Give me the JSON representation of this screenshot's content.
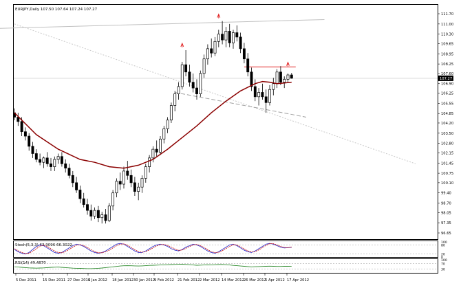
{
  "header": {
    "symbol_line": "EURJPY,Daily  107.50 107.64 107.24 107.27",
    "stoch_label": "Stoch(5,3,3) 63.9096 66.3022",
    "rsi_label": "RSI(14) 49.4870"
  },
  "colors": {
    "background": "#ffffff",
    "candle": "#000000",
    "moving_average": "#8b0000",
    "trendline_gray": "#b0b0b0",
    "resistance_red": "#e02020",
    "fractal_red": "#e02020",
    "stoch_main": "#3333cc",
    "stoch_signal": "#cc2222",
    "rsi_line": "#2e8b2e",
    "price_tag_bg": "#000000",
    "price_tag_text": "#ffffff"
  },
  "price_axis": {
    "ticks": [
      "111.70",
      "111.00",
      "110.30",
      "109.65",
      "108.95",
      "108.25",
      "107.60",
      "106.90",
      "106.25",
      "105.55",
      "104.85",
      "104.20",
      "103.50",
      "102.80",
      "102.15",
      "101.45",
      "100.75",
      "100.10",
      "99.40",
      "98.70",
      "98.05",
      "97.35",
      "96.65"
    ],
    "current_price": "107.27"
  },
  "stoch_axis": {
    "ticks": [
      "100",
      "80",
      "20",
      "0"
    ]
  },
  "rsi_axis": {
    "ticks": [
      "100",
      "70",
      "30"
    ]
  },
  "time_axis": {
    "ticks": [
      "5 Dec 2011",
      "15 Dec 2011",
      "27 Dec 2011",
      "6 Jan 2012",
      "18 Jan 2012",
      "30 Jan 2012",
      "9 Feb 2012",
      "21 Feb 2012",
      "2 Mar 2012",
      "14 Mar 2012",
      "26 Mar 2012",
      "5 Apr 2012",
      "17 Apr 2012"
    ]
  },
  "chart_data": {
    "type": "candlestick",
    "symbol": "EURJPY",
    "timeframe": "Daily",
    "ylim": [
      96.65,
      111.7
    ],
    "last_bar": {
      "open": 107.5,
      "high": 107.64,
      "low": 107.24,
      "close": 107.27
    },
    "ohlc": [
      [
        104.9,
        105.2,
        104.4,
        104.6
      ],
      [
        104.6,
        104.9,
        104.0,
        104.3
      ],
      [
        104.3,
        104.6,
        103.3,
        103.6
      ],
      [
        103.6,
        103.9,
        103.0,
        103.3
      ],
      [
        103.3,
        103.5,
        102.3,
        102.6
      ],
      [
        102.6,
        102.9,
        101.8,
        102.1
      ],
      [
        102.1,
        102.4,
        101.5,
        101.7
      ],
      [
        101.7,
        102.1,
        101.3,
        101.5
      ],
      [
        101.5,
        101.9,
        101.1,
        101.8
      ],
      [
        101.8,
        102.2,
        101.2,
        101.4
      ],
      [
        101.4,
        101.8,
        100.9,
        101.2
      ],
      [
        101.2,
        101.9,
        100.9,
        101.7
      ],
      [
        101.7,
        102.1,
        101.4,
        101.9
      ],
      [
        101.9,
        102.2,
        101.2,
        101.4
      ],
      [
        101.4,
        101.7,
        100.8,
        101.1
      ],
      [
        101.1,
        101.4,
        100.4,
        100.6
      ],
      [
        100.6,
        100.9,
        99.8,
        100.1
      ],
      [
        100.1,
        100.5,
        99.4,
        99.6
      ],
      [
        99.6,
        99.9,
        98.7,
        99.0
      ],
      [
        99.0,
        99.4,
        98.4,
        98.6
      ],
      [
        98.6,
        99.0,
        97.9,
        98.2
      ],
      [
        98.2,
        98.6,
        97.5,
        97.8
      ],
      [
        97.8,
        98.4,
        97.6,
        98.2
      ],
      [
        98.2,
        98.5,
        97.4,
        97.7
      ],
      [
        97.7,
        98.1,
        97.3,
        97.9
      ],
      [
        97.9,
        98.3,
        97.3,
        97.5
      ],
      [
        97.5,
        98.7,
        97.4,
        98.5
      ],
      [
        98.5,
        99.6,
        98.2,
        99.4
      ],
      [
        99.4,
        100.4,
        99.1,
        100.2
      ],
      [
        100.2,
        100.8,
        99.6,
        100.0
      ],
      [
        100.0,
        101.2,
        99.7,
        100.9
      ],
      [
        100.9,
        101.6,
        100.3,
        100.6
      ],
      [
        100.6,
        101.0,
        99.8,
        100.1
      ],
      [
        100.1,
        100.5,
        99.2,
        99.5
      ],
      [
        99.5,
        100.1,
        98.9,
        99.8
      ],
      [
        99.8,
        100.6,
        99.4,
        100.4
      ],
      [
        100.4,
        101.4,
        100.1,
        101.2
      ],
      [
        101.2,
        102.0,
        100.8,
        101.8
      ],
      [
        101.8,
        102.6,
        101.5,
        102.4
      ],
      [
        102.4,
        103.0,
        101.9,
        102.2
      ],
      [
        102.2,
        103.3,
        102.0,
        103.1
      ],
      [
        103.1,
        104.0,
        102.8,
        103.8
      ],
      [
        103.8,
        104.6,
        103.5,
        104.4
      ],
      [
        104.4,
        105.6,
        104.2,
        105.4
      ],
      [
        105.4,
        106.4,
        105.0,
        106.2
      ],
      [
        106.2,
        107.0,
        105.8,
        106.7
      ],
      [
        106.7,
        108.4,
        106.5,
        108.2
      ],
      [
        108.2,
        109.2,
        107.4,
        107.7
      ],
      [
        107.7,
        108.2,
        106.7,
        107.0
      ],
      [
        107.0,
        107.6,
        106.3,
        106.6
      ],
      [
        106.6,
        107.2,
        105.8,
        106.2
      ],
      [
        106.2,
        107.8,
        106.0,
        107.6
      ],
      [
        107.6,
        108.9,
        107.3,
        108.6
      ],
      [
        108.6,
        109.6,
        108.2,
        109.3
      ],
      [
        109.3,
        110.0,
        108.7,
        109.0
      ],
      [
        109.0,
        110.1,
        108.8,
        109.8
      ],
      [
        109.8,
        110.6,
        109.4,
        110.3
      ],
      [
        110.3,
        111.2,
        109.6,
        109.9
      ],
      [
        109.9,
        110.8,
        109.4,
        110.5
      ],
      [
        110.5,
        111.0,
        109.4,
        109.7
      ],
      [
        109.7,
        110.6,
        109.3,
        110.4
      ],
      [
        110.4,
        110.9,
        109.8,
        110.1
      ],
      [
        110.1,
        110.4,
        109.0,
        109.3
      ],
      [
        109.3,
        109.7,
        108.3,
        108.6
      ],
      [
        108.6,
        109.0,
        107.4,
        107.7
      ],
      [
        107.7,
        108.0,
        106.4,
        106.7
      ],
      [
        106.7,
        107.2,
        105.7,
        106.0
      ],
      [
        106.0,
        106.6,
        105.4,
        106.3
      ],
      [
        106.3,
        106.9,
        105.8,
        106.0
      ],
      [
        106.0,
        106.5,
        104.9,
        105.6
      ],
      [
        105.6,
        106.8,
        105.4,
        106.5
      ],
      [
        106.5,
        107.3,
        106.1,
        106.9
      ],
      [
        106.9,
        107.9,
        106.6,
        107.7
      ],
      [
        107.7,
        108.1,
        106.8,
        107.0
      ],
      [
        107.0,
        107.4,
        106.6,
        107.2
      ],
      [
        107.2,
        107.6,
        107.0,
        107.5
      ],
      [
        107.5,
        107.64,
        107.24,
        107.27
      ]
    ],
    "moving_average": [
      [
        0,
        104.9
      ],
      [
        6,
        103.4
      ],
      [
        12,
        102.4
      ],
      [
        18,
        101.7
      ],
      [
        22,
        101.5
      ],
      [
        26,
        101.2
      ],
      [
        30,
        101.1
      ],
      [
        34,
        101.3
      ],
      [
        38,
        101.7
      ],
      [
        42,
        102.4
      ],
      [
        46,
        103.2
      ],
      [
        50,
        104.0
      ],
      [
        54,
        104.9
      ],
      [
        58,
        105.7
      ],
      [
        62,
        106.4
      ],
      [
        66,
        106.9
      ],
      [
        68,
        107.05
      ],
      [
        70,
        107.0
      ],
      [
        72,
        106.9
      ],
      [
        74,
        106.95
      ],
      [
        76,
        107.0
      ]
    ],
    "overlays": {
      "resistance_line": {
        "price": 108.05,
        "x_from": 63,
        "x_to": 76
      },
      "top_channel": {
        "from": [
          -4,
          110.7
        ],
        "to": [
          85,
          111.3
        ]
      },
      "diagonal_trendline": {
        "from": [
          0,
          111.0
        ],
        "to": [
          110,
          101.4
        ]
      },
      "support_line": {
        "from": [
          44,
          106.3
        ],
        "to": [
          80,
          104.6
        ]
      },
      "fractals": [
        [
          56,
          111.2
        ],
        [
          46,
          109.2
        ],
        [
          75,
          107.9
        ]
      ]
    },
    "stochastic": {
      "k": [
        50,
        35,
        25,
        20,
        30,
        50,
        70,
        80,
        75,
        60,
        45,
        30,
        25,
        30,
        45,
        60,
        75,
        85,
        80,
        70,
        55,
        40,
        30,
        25,
        30,
        40,
        55,
        70,
        85,
        90,
        85,
        70,
        55,
        40,
        30,
        30,
        40,
        55,
        70,
        80,
        85,
        80,
        70,
        55,
        45,
        40,
        50,
        65,
        75,
        85,
        80,
        70,
        55,
        40,
        30,
        25,
        35,
        50,
        65,
        80,
        85,
        75,
        60,
        45,
        35,
        30,
        40,
        55,
        70,
        85,
        90,
        85,
        75,
        65,
        60,
        62,
        64
      ],
      "d": [
        55,
        42,
        30,
        23,
        25,
        38,
        55,
        72,
        78,
        70,
        55,
        40,
        30,
        28,
        36,
        50,
        65,
        78,
        82,
        75,
        63,
        48,
        36,
        28,
        28,
        35,
        45,
        60,
        75,
        85,
        87,
        78,
        63,
        48,
        36,
        32,
        36,
        47,
        60,
        73,
        82,
        83,
        77,
        65,
        53,
        44,
        46,
        57,
        69,
        80,
        83,
        76,
        63,
        48,
        36,
        29,
        31,
        42,
        56,
        70,
        82,
        80,
        68,
        53,
        41,
        33,
        36,
        47,
        62,
        77,
        88,
        88,
        80,
        70,
        63,
        62,
        66
      ]
    },
    "rsi": [
      46,
      44,
      42,
      40,
      38,
      37,
      36,
      37,
      38,
      40,
      42,
      43,
      44,
      42,
      40,
      38,
      36,
      35,
      34,
      33,
      32,
      32,
      33,
      35,
      37,
      40,
      43,
      46,
      49,
      52,
      54,
      55,
      54,
      53,
      52,
      53,
      55,
      57,
      58,
      59,
      60,
      61,
      62,
      63,
      64,
      65,
      66,
      64,
      62,
      60,
      58,
      59,
      60,
      61,
      60,
      62,
      63,
      64,
      62,
      60,
      57,
      55,
      52,
      50,
      48,
      46,
      47,
      48,
      49,
      50,
      51,
      50,
      49,
      49,
      50,
      50,
      49.5
    ]
  }
}
